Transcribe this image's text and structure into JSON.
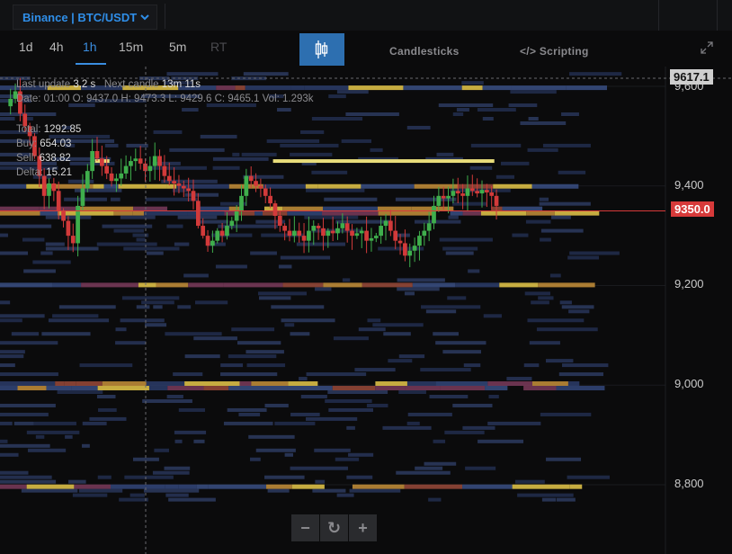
{
  "market": {
    "label": "Binance | BTC/USDT"
  },
  "timeframes": [
    {
      "label": "1d",
      "active": false
    },
    {
      "label": "4h",
      "active": false
    },
    {
      "label": "1h",
      "active": true
    },
    {
      "label": "15m",
      "active": false
    },
    {
      "label": "5m",
      "active": false
    },
    {
      "label": "RT",
      "active": false
    }
  ],
  "toolbar": {
    "chart_type_icon": "candlestick-icon",
    "candlesticks_label": "Candlesticks",
    "scripting_label": "</> Scripting",
    "expand_icon": "expand-icon"
  },
  "info": {
    "last_update_label": "Last update",
    "last_update_value": "3.2 s",
    "next_candle_label": "Next candle",
    "next_candle_value": "13m 11s",
    "ohlc": "Date: 01:00  O: 9437.0  H: 9473.3  L: 9429.6  C: 9465.1  Vol: 1.293k",
    "total_label": "Total:",
    "total_value": "1292.85",
    "buy_label": "Buy:",
    "buy_value": "654.03",
    "sell_label": "Sell:",
    "sell_value": "638.82",
    "delta_label": "Delta:",
    "delta_value": "15.21"
  },
  "price_axis": {
    "last_price_tag": "9617.1",
    "current_price_tag": "9350.0",
    "ticks": [
      "9,600",
      "9,400",
      "9,200",
      "9,000",
      "8,800"
    ]
  },
  "zoom_controls": {
    "minus": "−",
    "reset": "↻",
    "plus": "+"
  },
  "colors": {
    "accent": "#2f8ee8",
    "up": "#3fae4c",
    "down": "#d23a3a",
    "current_price": "#d73a3a",
    "order_wall": "#e8dc7a",
    "heatmap_low": "#2c3c6a",
    "heatmap_high": "#e8c94a"
  },
  "chart_data": {
    "type": "candlestick",
    "ylim": [
      8720,
      9640
    ],
    "current_price": 9350.0,
    "last_price_line": 9617.1,
    "yticks": [
      9600,
      9400,
      9200,
      9000,
      8800
    ],
    "close_series": [
      9560,
      9575,
      9590,
      9545,
      9520,
      9500,
      9460,
      9420,
      9380,
      9405,
      9390,
      9350,
      9330,
      9300,
      9285,
      9360,
      9395,
      9430,
      9470,
      9455,
      9440,
      9425,
      9410,
      9415,
      9425,
      9440,
      9450,
      9455,
      9445,
      9430,
      9440,
      9460,
      9440,
      9420,
      9410,
      9405,
      9400,
      9395,
      9390,
      9370,
      9320,
      9300,
      9280,
      9290,
      9310,
      9300,
      9320,
      9330,
      9350,
      9380,
      9420,
      9410,
      9400,
      9395,
      9380,
      9365,
      9340,
      9320,
      9310,
      9300,
      9310,
      9300,
      9290,
      9310,
      9320,
      9315,
      9300,
      9310,
      9305,
      9315,
      9325,
      9310,
      9300,
      9305,
      9310,
      9290,
      9295,
      9300,
      9320,
      9330,
      9310,
      9290,
      9285,
      9260,
      9270,
      9280,
      9300,
      9310,
      9325,
      9360,
      9380,
      9375,
      9380,
      9390,
      9385,
      9380,
      9395,
      9390,
      9385,
      9392,
      9387,
      9380,
      9360
    ],
    "order_walls": [
      {
        "price": 9450,
        "from_index": 56,
        "to_index": 102
      },
      {
        "price": 9450,
        "from_index": 19,
        "to_index": 22
      }
    ]
  }
}
